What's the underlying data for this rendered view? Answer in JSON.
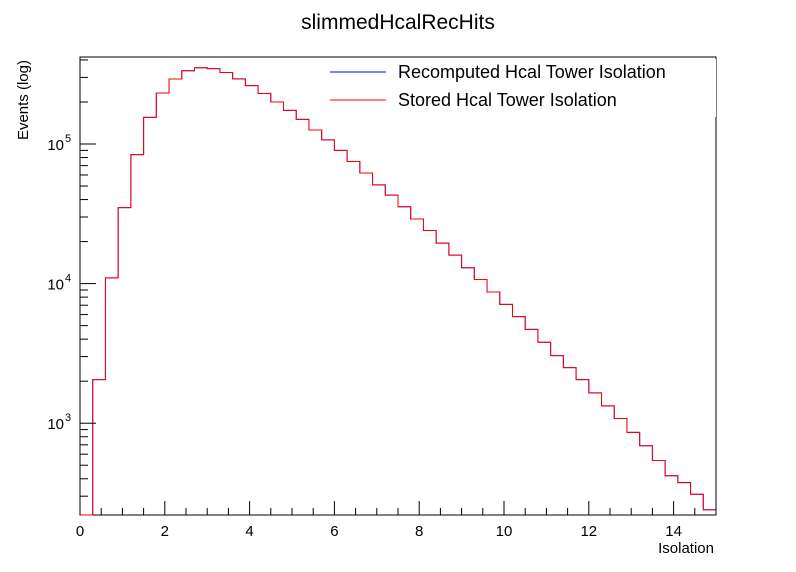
{
  "chart_data": {
    "type": "histogram",
    "title": "slimmedHcalRecHits",
    "xlabel": "Isolation",
    "ylabel": "Events (log)",
    "xlim": [
      0,
      15
    ],
    "ylim": [
      220,
      420000
    ],
    "yscale": "log",
    "bin_width": 0.3,
    "x_ticks": [
      "0",
      "2",
      "4",
      "6",
      "8",
      "10",
      "12",
      "14"
    ],
    "y_ticks": [
      {
        "base": "10",
        "exp": "3",
        "value": 1000
      },
      {
        "base": "10",
        "exp": "4",
        "value": 10000
      },
      {
        "base": "10",
        "exp": "5",
        "value": 100000
      }
    ],
    "legend": {
      "placement": "top-right"
    },
    "series": [
      {
        "name": "Recomputed Hcal Tower Isolation",
        "color": "#0000ff",
        "values": [
          200,
          2050,
          11000,
          35000,
          84000,
          155000,
          232000,
          292000,
          335000,
          352000,
          347000,
          325000,
          293000,
          262000,
          230000,
          200000,
          174000,
          150000,
          126000,
          107000,
          90000,
          75000,
          62000,
          51000,
          43000,
          35500,
          29000,
          24000,
          19500,
          16000,
          13000,
          10700,
          8700,
          7100,
          5800,
          4700,
          3800,
          3050,
          2500,
          2050,
          1650,
          1330,
          1080,
          860,
          690,
          540,
          420,
          375,
          310,
          240
        ]
      },
      {
        "name": "Stored Hcal Tower Isolation",
        "color": "#ff0000",
        "values": [
          200,
          2050,
          11000,
          35000,
          84000,
          155000,
          232000,
          292000,
          335000,
          352000,
          347000,
          325000,
          293000,
          262000,
          230000,
          200000,
          174000,
          150000,
          126000,
          107000,
          90000,
          75000,
          62000,
          51000,
          43000,
          35500,
          29000,
          24000,
          19500,
          16000,
          13000,
          10700,
          8700,
          7100,
          5800,
          4700,
          3800,
          3050,
          2500,
          2050,
          1650,
          1330,
          1080,
          860,
          690,
          540,
          420,
          375,
          310,
          240
        ]
      }
    ]
  }
}
